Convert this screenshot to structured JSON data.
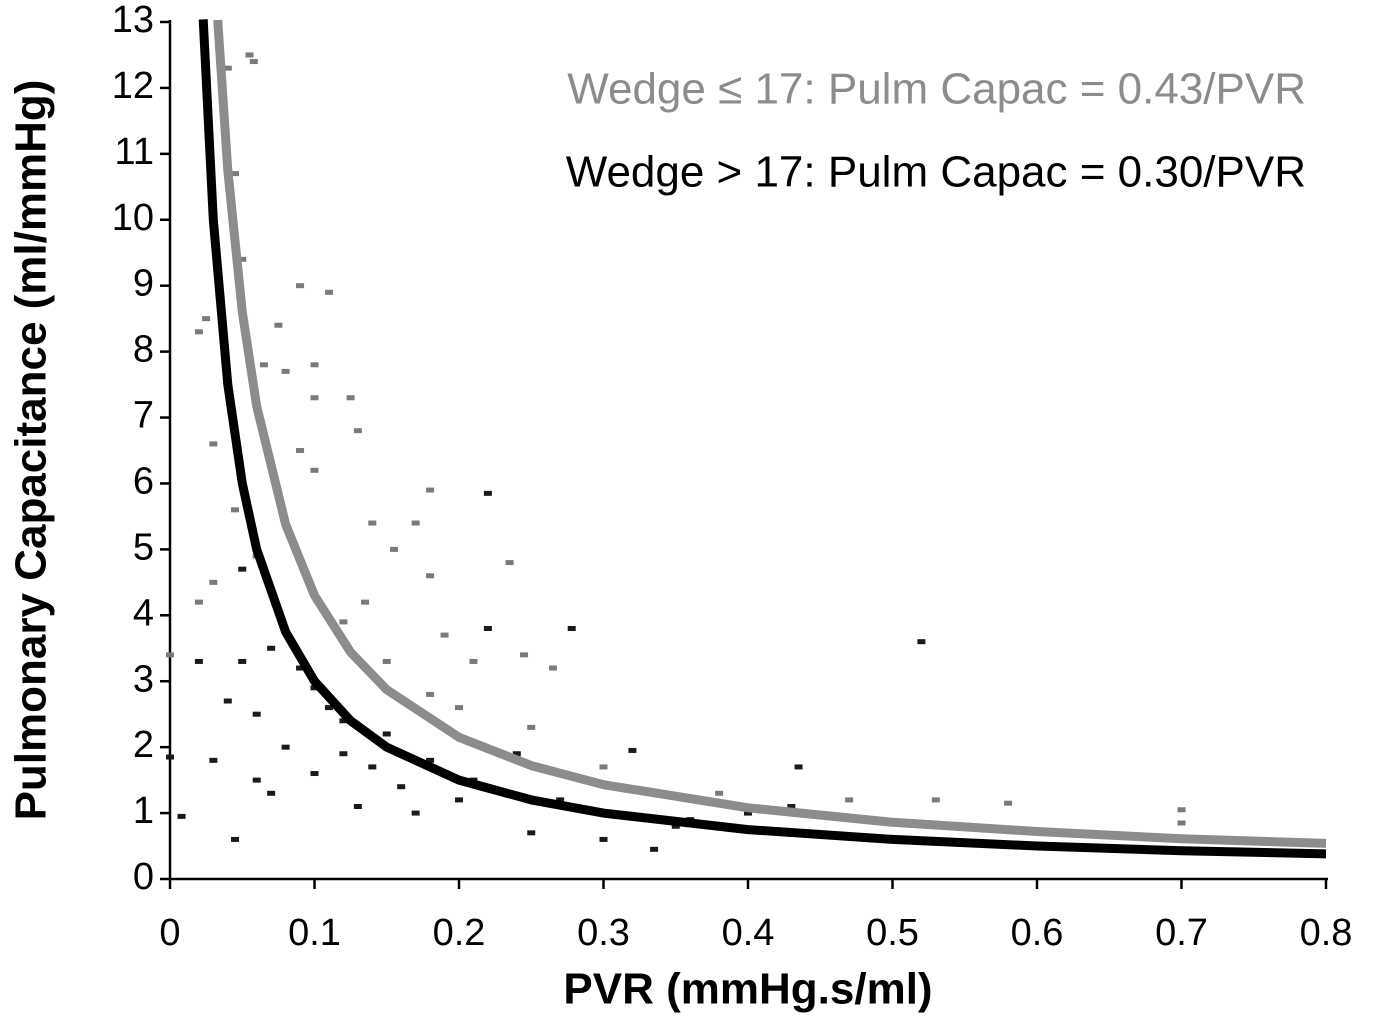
{
  "chart_data": {
    "type": "scatter",
    "xlabel": "PVR (mmHg.s/ml)",
    "ylabel": "Pulmonary Capacitance (ml/mmHg)",
    "xlim": [
      0,
      0.8
    ],
    "ylim": [
      0,
      13
    ],
    "xticks": [
      0,
      0.1,
      0.2,
      0.3,
      0.4,
      0.5,
      0.6,
      0.7,
      0.8
    ],
    "yticks": [
      0,
      1,
      2,
      3,
      4,
      5,
      6,
      7,
      8,
      9,
      10,
      11,
      12,
      13
    ],
    "annotations": [
      {
        "text": "Wedge ≤ 17: Pulm Capac = 0.43/PVR",
        "color": "#8c8c8c"
      },
      {
        "text": "Wedge > 17: Pulm Capac = 0.30/PVR",
        "color": "#000000"
      }
    ],
    "series": [
      {
        "color": "#7a7a7a",
        "x": [
          0.04,
          0.055,
          0.058,
          0.045,
          0.05,
          0.09,
          0.11,
          0.075,
          0.065,
          0.08,
          0.1,
          0.1,
          0.125,
          0.13,
          0.09,
          0.1,
          0.17,
          0.18,
          0.14,
          0.155,
          0.18,
          0.235,
          0.045,
          0.06,
          0.02,
          0.135,
          0.19,
          0.21,
          0.245,
          0.265,
          0.18,
          0.2,
          0.25,
          0.3,
          0.38,
          0.53,
          0.58,
          0.7,
          0.7,
          0.47,
          0.0,
          0.03,
          0.12,
          0.15,
          0.02,
          0.025,
          0.03
        ],
        "values": [
          12.3,
          12.5,
          12.4,
          10.7,
          9.4,
          9.0,
          8.9,
          8.4,
          7.8,
          7.7,
          7.8,
          7.3,
          7.3,
          6.8,
          6.5,
          6.2,
          5.4,
          5.9,
          5.4,
          5.0,
          4.6,
          4.8,
          5.6,
          4.9,
          4.2,
          4.2,
          3.7,
          3.3,
          3.4,
          3.2,
          2.8,
          2.6,
          2.3,
          1.7,
          1.3,
          1.2,
          1.15,
          1.05,
          0.85,
          1.2,
          3.4,
          4.5,
          3.9,
          3.3,
          8.3,
          8.5,
          6.6
        ]
      },
      {
        "color": "#1a1a1a",
        "x": [
          0.22,
          0.52,
          0.045,
          0.008,
          0.0,
          0.03,
          0.04,
          0.06,
          0.07,
          0.08,
          0.1,
          0.11,
          0.12,
          0.13,
          0.14,
          0.15,
          0.16,
          0.17,
          0.18,
          0.2,
          0.22,
          0.21,
          0.24,
          0.25,
          0.27,
          0.278,
          0.3,
          0.32,
          0.335,
          0.35,
          0.435,
          0.43,
          0.4,
          0.36,
          0.05,
          0.07,
          0.09,
          0.1,
          0.12,
          0.05,
          0.02,
          0.06
        ],
        "values": [
          5.85,
          3.6,
          0.6,
          0.95,
          1.85,
          1.8,
          2.7,
          2.5,
          1.3,
          2.0,
          1.6,
          2.6,
          1.9,
          1.1,
          1.7,
          2.2,
          1.4,
          1.0,
          1.8,
          1.2,
          3.8,
          1.5,
          1.9,
          0.7,
          1.2,
          3.8,
          0.6,
          1.95,
          0.45,
          0.8,
          1.7,
          1.1,
          1.0,
          0.9,
          4.7,
          3.5,
          3.2,
          2.9,
          2.4,
          3.3,
          3.3,
          1.5
        ]
      }
    ],
    "curves": [
      {
        "color": "#8c8c8c",
        "x": [
          0.033,
          0.04,
          0.05,
          0.06,
          0.08,
          0.1,
          0.125,
          0.15,
          0.2,
          0.25,
          0.3,
          0.4,
          0.5,
          0.6,
          0.7,
          0.8
        ],
        "values": [
          13.03,
          10.75,
          8.6,
          7.17,
          5.38,
          4.3,
          3.44,
          2.87,
          2.15,
          1.72,
          1.43,
          1.08,
          0.86,
          0.72,
          0.61,
          0.54
        ]
      },
      {
        "color": "#000000",
        "x": [
          0.023,
          0.03,
          0.04,
          0.05,
          0.06,
          0.08,
          0.1,
          0.125,
          0.15,
          0.2,
          0.25,
          0.3,
          0.4,
          0.5,
          0.6,
          0.7,
          0.8
        ],
        "values": [
          13.04,
          10,
          7.5,
          6,
          5,
          3.75,
          3,
          2.4,
          2,
          1.5,
          1.2,
          1,
          0.75,
          0.6,
          0.5,
          0.43,
          0.38
        ]
      }
    ]
  }
}
